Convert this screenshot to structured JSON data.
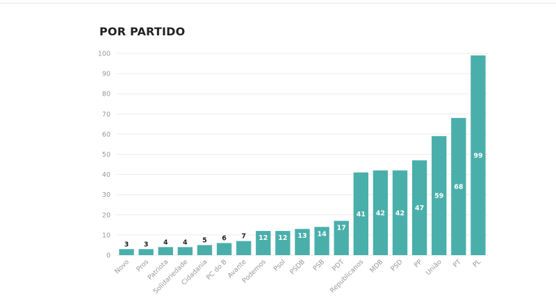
{
  "title": "POR PARTIDO",
  "colors": {
    "bar": "#4aafab",
    "bar_label_inside": "#ffffff",
    "bar_label_outside": "#222222",
    "grid": "#ebebeb",
    "tick": "#999999"
  },
  "chart_data": {
    "type": "bar",
    "title": "POR PARTIDO",
    "xlabel": "",
    "ylabel": "",
    "ylim": [
      0,
      100
    ],
    "yticks": [
      0,
      10,
      20,
      30,
      40,
      50,
      60,
      70,
      80,
      90,
      100
    ],
    "grid": true,
    "legend": "none",
    "categories": [
      "Novo",
      "Pros",
      "Patriota",
      "Solidariedade",
      "Cidadania",
      "PC do B",
      "Avante",
      "Podemos",
      "Psol",
      "PSDB",
      "PSB",
      "PDT",
      "Republicanos",
      "MDB",
      "PSD",
      "PP",
      "União",
      "PT",
      "PL"
    ],
    "values": [
      3,
      3,
      4,
      4,
      5,
      6,
      7,
      12,
      12,
      13,
      14,
      17,
      41,
      42,
      42,
      47,
      59,
      68,
      99
    ]
  }
}
